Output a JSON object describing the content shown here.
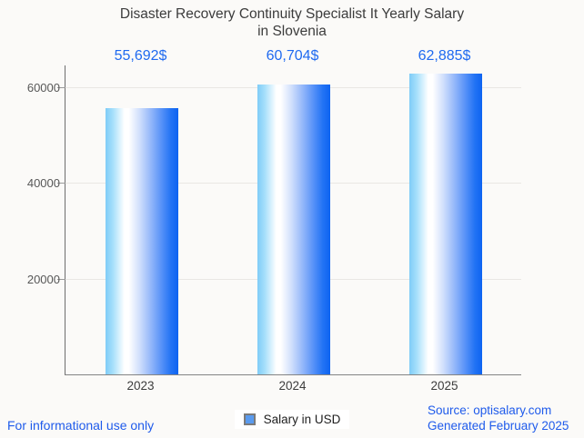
{
  "title": {
    "line1": "Disaster Recovery Continuity Specialist It Yearly Salary",
    "line2": "in Slovenia"
  },
  "chart_data": {
    "type": "bar",
    "title": "Disaster Recovery Continuity Specialist It Yearly Salary in Slovenia",
    "categories": [
      "2023",
      "2024",
      "2025"
    ],
    "series": [
      {
        "name": "Salary in USD",
        "values": [
          55692,
          60704,
          62885
        ]
      }
    ],
    "value_labels": [
      "55,692$",
      "60,704$",
      "62,885$"
    ],
    "xlabel": "",
    "ylabel": "",
    "ylim": [
      0,
      64600
    ],
    "y_ticks": [
      20000,
      40000,
      60000
    ],
    "y_tick_labels": [
      "20000",
      "40000",
      "60000"
    ],
    "grid": true,
    "legend_position": "bottom",
    "bar_gradient": [
      "#7fccf7",
      "#ffffff",
      "#0d63f1"
    ]
  },
  "legend": {
    "label": "Salary in USD",
    "marker_color": "#5a9bef"
  },
  "footer": {
    "left": "For informational use only",
    "source": "Source: optisalary.com",
    "generated": "Generated February 2025"
  },
  "colors": {
    "background": "#fbfaf8",
    "title_text": "#3c3c3c",
    "value_label_text": "#1f6af0",
    "footer_text": "#1f5beb",
    "axis": "#6e6e6e",
    "gridline": "#e9e7e4"
  }
}
